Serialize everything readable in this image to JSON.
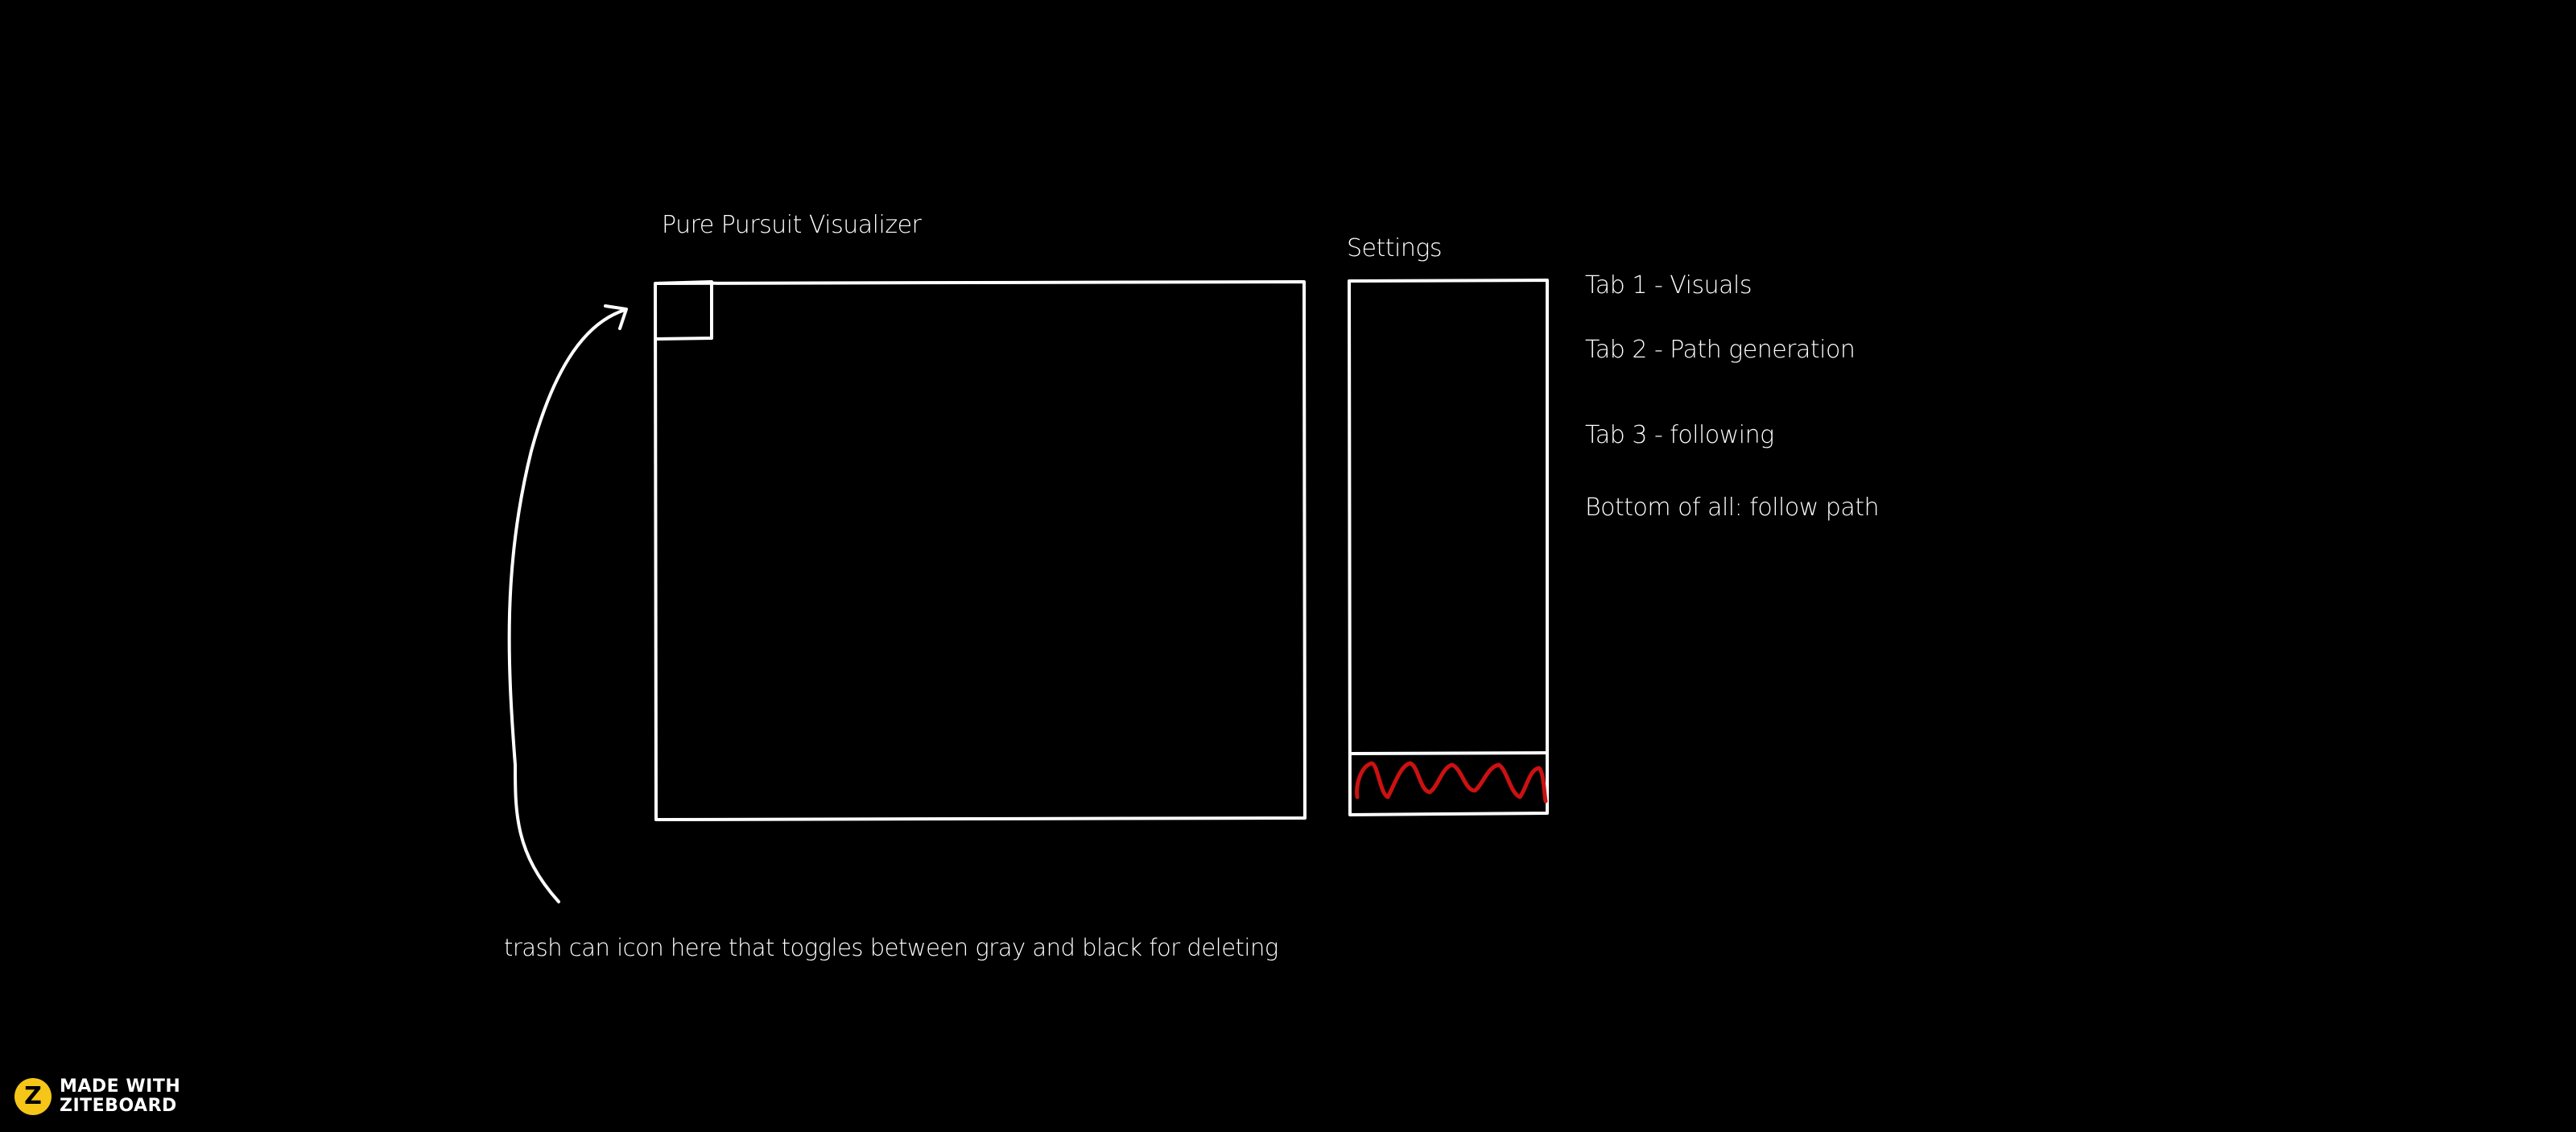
{
  "diagram": {
    "visualizer_title": "Pure Pursuit Visualizer",
    "settings_title": "Settings",
    "notes": [
      "Tab 1 - Visuals",
      "Tab 2 - Path generation",
      "Tab 3 - following",
      "Bottom of all: follow path"
    ],
    "trash_note": "trash can icon here that toggles between gray and black for deleting"
  },
  "branding": {
    "logo_letter": "Z",
    "line1": "MADE WITH",
    "line2": "ZITEBOARD"
  },
  "colors": {
    "background": "#000000",
    "stroke": "#ffffff",
    "scribble": "#cc1111",
    "brand_accent": "#f5c518"
  }
}
